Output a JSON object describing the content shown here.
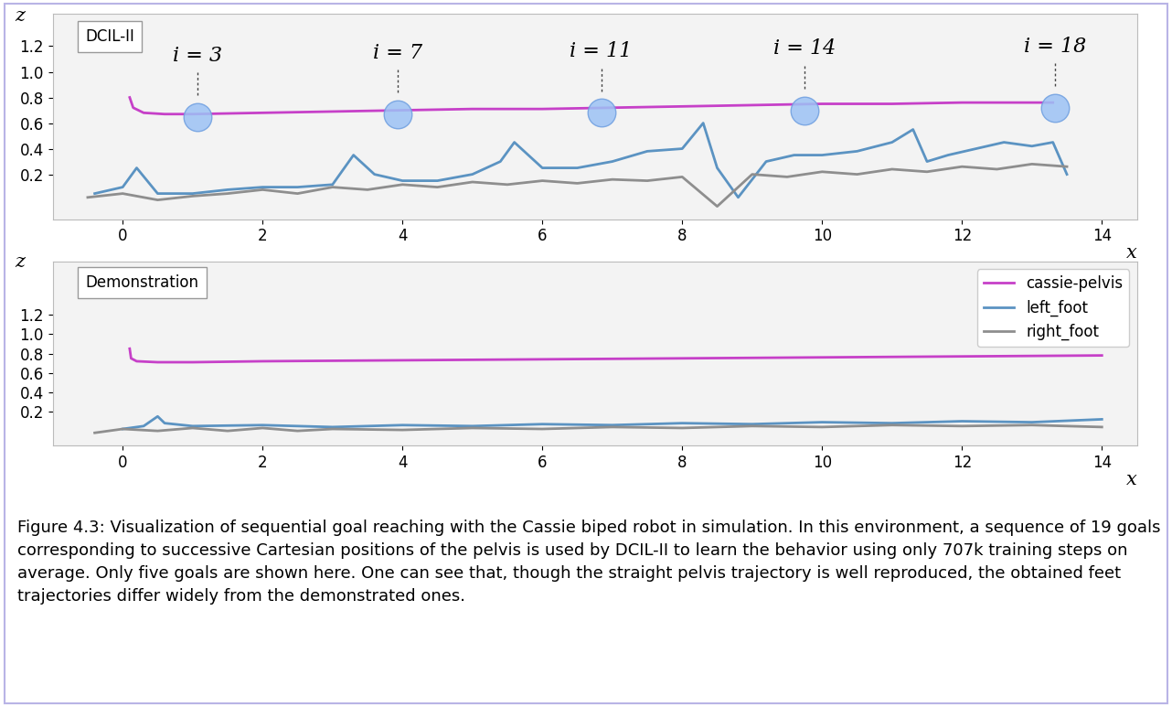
{
  "chart_data": [
    {
      "type": "line",
      "title": "DCIL-II",
      "xlabel": "x",
      "ylabel": "z",
      "xlim": [
        -1,
        14.5
      ],
      "ylim": [
        -0.15,
        1.45
      ],
      "xticks": [
        0,
        2,
        4,
        6,
        8,
        10,
        12,
        14
      ],
      "yticks": [
        0.2,
        0.4,
        0.6,
        0.8,
        1.0,
        1.2
      ],
      "series": [
        {
          "color": "#c640c8",
          "x": [
            0.1,
            0.15,
            0.3,
            0.6,
            1,
            2,
            3,
            4,
            5,
            6,
            7,
            8,
            9,
            10,
            11,
            12,
            13,
            13.3
          ],
          "values": [
            0.8,
            0.72,
            0.68,
            0.67,
            0.67,
            0.68,
            0.69,
            0.7,
            0.71,
            0.71,
            0.72,
            0.73,
            0.74,
            0.75,
            0.75,
            0.76,
            0.76,
            0.76
          ]
        },
        {
          "color": "#5b93c2",
          "x": [
            -0.4,
            0,
            0.2,
            0.5,
            1,
            1.5,
            2,
            2.5,
            3,
            3.3,
            3.6,
            4,
            4.5,
            5,
            5.4,
            5.6,
            6,
            6.5,
            7,
            7.5,
            8,
            8.3,
            8.5,
            8.8,
            9.2,
            9.6,
            10,
            10.5,
            11,
            11.3,
            11.5,
            11.8,
            12.2,
            12.6,
            13,
            13.3,
            13.5
          ],
          "values": [
            0.05,
            0.1,
            0.25,
            0.05,
            0.05,
            0.08,
            0.1,
            0.1,
            0.12,
            0.35,
            0.2,
            0.15,
            0.15,
            0.2,
            0.3,
            0.45,
            0.25,
            0.25,
            0.3,
            0.38,
            0.4,
            0.6,
            0.25,
            0.02,
            0.3,
            0.35,
            0.35,
            0.38,
            0.45,
            0.55,
            0.3,
            0.35,
            0.4,
            0.45,
            0.42,
            0.45,
            0.2
          ]
        },
        {
          "color": "#8e8e8e",
          "x": [
            -0.5,
            0,
            0.5,
            1,
            1.5,
            2,
            2.5,
            3,
            3.5,
            4,
            4.5,
            5,
            5.5,
            6,
            6.5,
            7,
            7.5,
            8,
            8.5,
            9,
            9.5,
            10,
            10.5,
            11,
            11.5,
            12,
            12.5,
            13,
            13.5
          ],
          "values": [
            0.02,
            0.05,
            0.0,
            0.03,
            0.05,
            0.08,
            0.05,
            0.1,
            0.08,
            0.12,
            0.1,
            0.14,
            0.12,
            0.15,
            0.13,
            0.16,
            0.15,
            0.18,
            -0.05,
            0.2,
            0.18,
            0.22,
            0.2,
            0.24,
            0.22,
            0.26,
            0.24,
            0.28,
            0.26
          ]
        }
      ],
      "goals": [
        {
          "label": "i = 3",
          "x": 1.07,
          "z": 0.65
        },
        {
          "label": "i = 7",
          "x": 3.93,
          "z": 0.67
        },
        {
          "label": "i = 11",
          "x": 6.84,
          "z": 0.68
        },
        {
          "label": "i = 14",
          "x": 9.75,
          "z": 0.7
        },
        {
          "label": "i = 18",
          "x": 13.33,
          "z": 0.72
        }
      ]
    },
    {
      "type": "line",
      "title": "Demonstration",
      "xlabel": "x",
      "ylabel": "z",
      "xlim": [
        -1,
        14.5
      ],
      "ylim": [
        -0.15,
        1.75
      ],
      "xticks": [
        0,
        2,
        4,
        6,
        8,
        10,
        12,
        14
      ],
      "yticks": [
        0.2,
        0.4,
        0.6,
        0.8,
        1.0,
        1.2
      ],
      "legend": "upper right",
      "series": [
        {
          "name": "cassie-pelvis",
          "color": "#c640c8",
          "x": [
            0.1,
            0.12,
            0.2,
            0.5,
            1,
            2,
            4,
            6,
            8,
            10,
            12,
            14
          ],
          "values": [
            0.85,
            0.75,
            0.72,
            0.71,
            0.71,
            0.72,
            0.73,
            0.74,
            0.75,
            0.76,
            0.77,
            0.78
          ]
        },
        {
          "name": "left_foot",
          "color": "#5b93c2",
          "x": [
            0,
            0.3,
            0.5,
            0.6,
            1,
            2,
            3,
            4,
            5,
            6,
            7,
            8,
            9,
            10,
            11,
            12,
            13,
            14
          ],
          "values": [
            0.02,
            0.05,
            0.15,
            0.08,
            0.05,
            0.06,
            0.04,
            0.06,
            0.05,
            0.07,
            0.06,
            0.08,
            0.07,
            0.09,
            0.08,
            0.1,
            0.09,
            0.12
          ]
        },
        {
          "name": "right_foot",
          "color": "#8e8e8e",
          "x": [
            -0.4,
            0,
            0.5,
            1,
            1.5,
            2,
            2.5,
            3,
            4,
            5,
            6,
            7,
            8,
            9,
            10,
            11,
            12,
            13,
            14
          ],
          "values": [
            -0.02,
            0.02,
            0.0,
            0.03,
            0.0,
            0.03,
            0.0,
            0.02,
            0.01,
            0.03,
            0.02,
            0.04,
            0.03,
            0.05,
            0.04,
            0.06,
            0.05,
            0.06,
            0.04
          ]
        }
      ]
    }
  ],
  "caption": "Figure 4.3: Visualization of sequential goal reaching with the Cassie biped robot in simulation. In this environment, a sequence of 19 goals corresponding to successive Cartesian positions of the pelvis is used by DCIL-II to learn the behavior using only 707k training steps on average. Only five goals are shown here. One can see that, though the straight pelvis trajectory is well reproduced, the obtained feet trajectories differ widely from the demonstrated ones."
}
